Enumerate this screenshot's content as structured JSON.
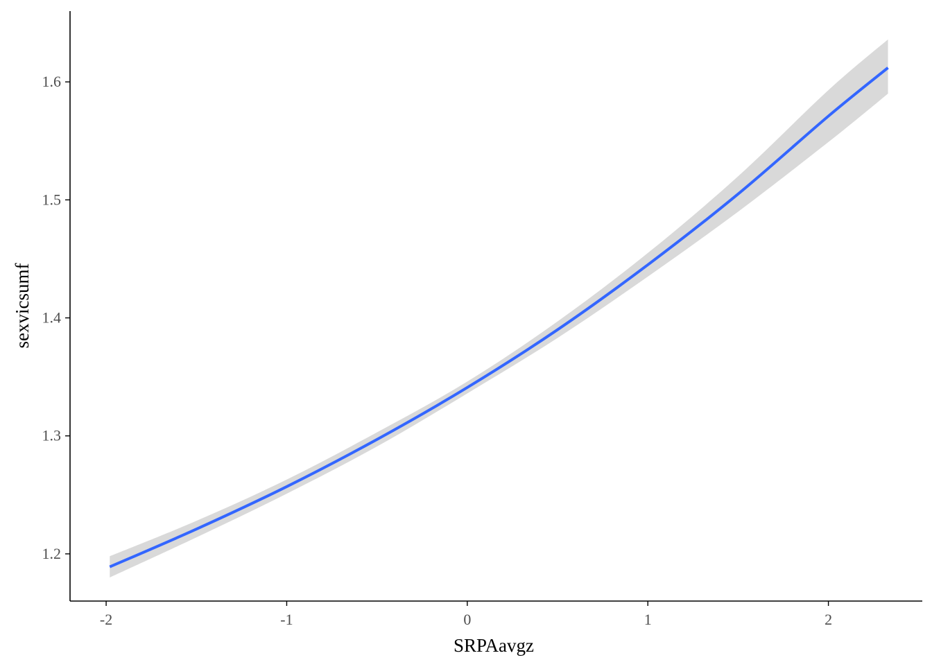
{
  "chart_data": {
    "type": "line",
    "title": "",
    "xlabel": "SRPAavgz",
    "ylabel": "sexvicsumf",
    "xlim": [
      -2.2,
      2.52
    ],
    "ylim": [
      1.16,
      1.66
    ],
    "x_ticks": [
      -2,
      -1,
      0,
      1,
      2
    ],
    "x_tick_labels": [
      "-2",
      "-1",
      "0",
      "1",
      "2"
    ],
    "y_ticks": [
      1.2,
      1.3,
      1.4,
      1.5,
      1.6
    ],
    "y_tick_labels": [
      "1.2",
      "1.3",
      "1.4",
      "1.5",
      "1.6"
    ],
    "grid": false,
    "legend": "none",
    "series": [
      {
        "x": [
          -1.98,
          -1.5,
          -1.0,
          -0.5,
          0.0,
          0.5,
          1.0,
          1.5,
          2.0,
          2.33
        ],
        "y": [
          1.189,
          1.221,
          1.257,
          1.297,
          1.341,
          1.39,
          1.445,
          1.505,
          1.571,
          1.612
        ],
        "ci_lower": [
          1.18,
          1.214,
          1.251,
          1.291,
          1.336,
          1.383,
          1.435,
          1.49,
          1.549,
          1.59
        ],
        "ci_upper": [
          1.198,
          1.228,
          1.263,
          1.303,
          1.346,
          1.397,
          1.455,
          1.52,
          1.593,
          1.636
        ],
        "color": "#3366ff",
        "ribbon_color": "#d9d9d9"
      }
    ]
  }
}
